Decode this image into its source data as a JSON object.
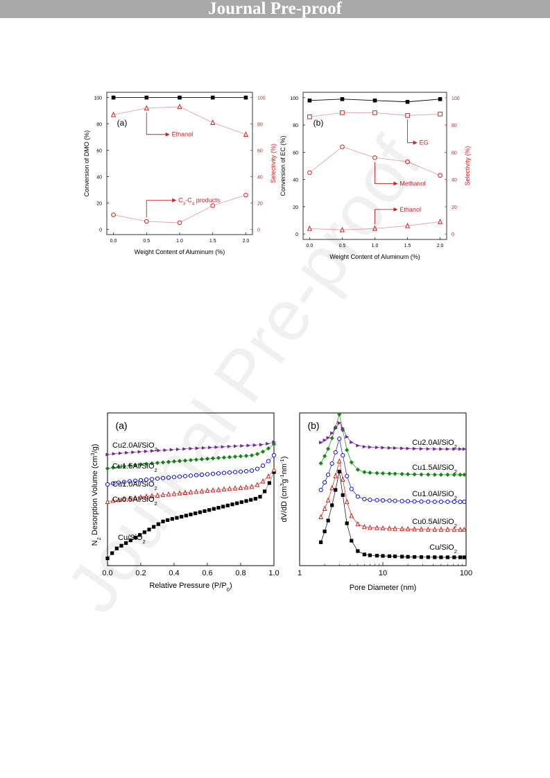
{
  "banner": "Journal Pre-proof",
  "watermark": "Journal Pre-proof",
  "colors": {
    "red": "#d02020",
    "black": "#000000",
    "pink": "#e3a3a3",
    "purple": "#7b1fa2",
    "green": "#128a12",
    "blue": "#1010e0",
    "red2": "#e01818"
  },
  "chart_data": [
    {
      "type": "line",
      "panel": "(a)",
      "xlabel": "Weight Content of Aluminum  (%)",
      "ylabel": "Conversion of DMO (%)",
      "y2label": "Selectivity (%)",
      "xlim": [
        -0.1,
        2.1
      ],
      "ylim": [
        -4,
        104
      ],
      "x_ticks": [
        "0.0",
        "0.5",
        "1.0",
        "1.5",
        "2.0"
      ],
      "y_ticks": [
        "0",
        "20",
        "40",
        "60",
        "80",
        "100"
      ],
      "y2_ticks": [
        "0",
        "20",
        "40",
        "60",
        "80",
        "100"
      ],
      "x": [
        0,
        0.5,
        1.0,
        1.5,
        2.0
      ],
      "series": [
        {
          "marker": "square",
          "axis": "left",
          "values": [
            100,
            100,
            100,
            100,
            100
          ]
        },
        {
          "marker": "triangle",
          "axis": "right",
          "values": [
            87,
            92,
            93,
            81,
            72
          ]
        },
        {
          "marker": "circle",
          "axis": "right",
          "values": [
            11,
            6,
            5,
            18,
            26
          ]
        }
      ],
      "annotations": [
        {
          "text": "Ethanol",
          "point": [
            0.5,
            92
          ],
          "arrow_to": [
            0.85,
            72
          ]
        },
        {
          "text": "C3-C4 products",
          "point": [
            0.5,
            6
          ],
          "arrow_to": [
            0.95,
            22
          ]
        }
      ]
    },
    {
      "type": "line",
      "panel": "(b)",
      "xlabel": "Weight Content of Aluminum  (%)",
      "ylabel": "Conversion of EC (%)",
      "y2label": "Selectivity (%)",
      "xlim": [
        -0.1,
        2.1
      ],
      "ylim": [
        -4,
        104
      ],
      "x_ticks": [
        "0.0",
        "0.5",
        "1.0",
        "1.5",
        "2.0"
      ],
      "y_ticks": [
        "0",
        "20",
        "40",
        "60",
        "80",
        "100"
      ],
      "y2_ticks": [
        "0",
        "20",
        "40",
        "60",
        "80",
        "100"
      ],
      "x": [
        0,
        0.5,
        1.0,
        1.5,
        2.0
      ],
      "series": [
        {
          "marker": "square",
          "axis": "left",
          "values": [
            98,
            99,
            98,
            97,
            99
          ]
        },
        {
          "marker": "square-open",
          "axis": "right",
          "values": [
            86,
            89,
            89,
            87,
            88
          ]
        },
        {
          "marker": "circle",
          "axis": "right",
          "values": [
            45,
            64,
            56,
            53,
            43
          ]
        },
        {
          "marker": "triangle",
          "axis": "right",
          "values": [
            4,
            3,
            4,
            6,
            9
          ]
        }
      ],
      "annotations": [
        {
          "text": "EG",
          "point": [
            1.5,
            87
          ],
          "arrow_to": [
            1.65,
            67
          ]
        },
        {
          "text": "Methanol",
          "point": [
            1.0,
            56
          ],
          "arrow_to": [
            1.35,
            37
          ]
        },
        {
          "text": "Ethanol",
          "point": [
            1.0,
            4
          ],
          "arrow_to": [
            1.35,
            18
          ]
        }
      ]
    },
    {
      "type": "scatter",
      "panel": "(a)",
      "xlabel": "Relative Pressure (P/P0)",
      "ylabel": "N2 Desorption Volume (cm3/g)",
      "xlim": [
        0,
        1.0
      ],
      "x_ticks": [
        "0.0",
        "0.2",
        "0.4",
        "0.6",
        "0.8",
        "1.0"
      ],
      "series": [
        {
          "name": "Cu2.0Al/SiO2",
          "marker": "triangle-right",
          "color": "#7b1fa2"
        },
        {
          "name": "Cu1.5Al/SiO2",
          "marker": "diamond",
          "color": "#128a12"
        },
        {
          "name": "Cu1.0Al/SiO2",
          "marker": "circle",
          "color": "#1010e0"
        },
        {
          "name": "Cu0.5Al/SiO2",
          "marker": "triangle",
          "color": "#e01818"
        },
        {
          "name": "Cu/SiO2",
          "marker": "square",
          "color": "#000000"
        }
      ]
    },
    {
      "type": "scatter",
      "panel": "(b)",
      "xlabel": "Pore Diameter (nm)",
      "ylabel": "dV/dD (cm3g-1nm-1)",
      "xscale": "log",
      "xlim": [
        1,
        100
      ],
      "x_ticks": [
        "1",
        "10",
        "100"
      ],
      "series": [
        {
          "name": "Cu2.0Al/SiO2",
          "marker": "triangle-right",
          "color": "#7b1fa2"
        },
        {
          "name": "Cu1.5Al/SiO2",
          "marker": "diamond",
          "color": "#128a12"
        },
        {
          "name": "Cu1.0Al/SiO2",
          "marker": "circle",
          "color": "#1010e0"
        },
        {
          "name": "Cu0.5Al/SiO2",
          "marker": "triangle",
          "color": "#e01818"
        },
        {
          "name": "Cu/SiO2",
          "marker": "square",
          "color": "#000000"
        }
      ]
    }
  ]
}
